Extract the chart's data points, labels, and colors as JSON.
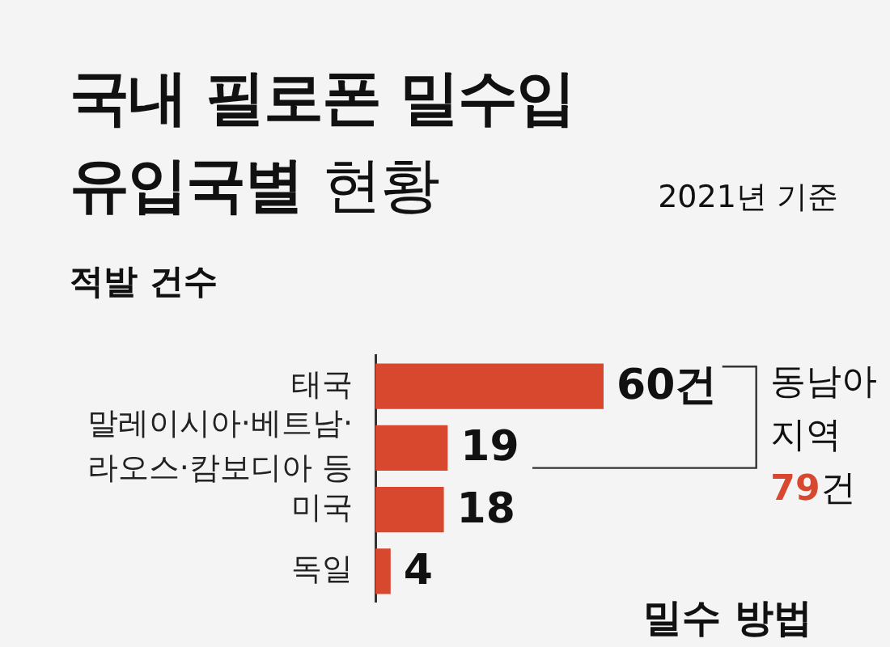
{
  "chart_data": {
    "type": "bar",
    "orientation": "horizontal",
    "title": "국내 필로폰 밀수입 유입국별 현황",
    "subtitle": "2021년 기준",
    "xlabel": "적발 건수",
    "categories": [
      "태국",
      "말레이시아·베트남·라오스·캄보디아 등",
      "미국",
      "독일"
    ],
    "values": [
      60,
      19,
      18,
      4
    ],
    "color": "#d8482f",
    "value_labels": [
      "60건",
      "19",
      "18",
      "4"
    ],
    "annotations": [
      "동남아 지역 79건",
      "밀수 방법"
    ]
  }
}
